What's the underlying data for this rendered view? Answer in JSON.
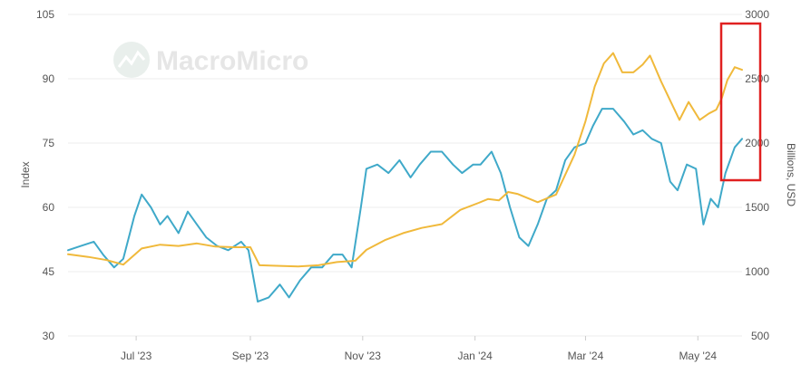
{
  "watermark": {
    "text": "MacroMicro"
  },
  "chart_data": {
    "type": "line",
    "title": "",
    "y_left": {
      "label": "Index",
      "range": [
        30,
        105
      ],
      "ticks": [
        30,
        45,
        60,
        75,
        90,
        105
      ]
    },
    "y_right": {
      "label": "Billions, USD",
      "range": [
        500,
        3000
      ],
      "ticks": [
        500,
        1000,
        1500,
        2000,
        2500,
        3000
      ]
    },
    "x_labels": [
      "Jul '23",
      "Sep '23",
      "Nov '23",
      "Jan '24",
      "Mar '24",
      "May '24"
    ],
    "x_tick_dates": [
      "2023-07-01",
      "2023-09-01",
      "2023-11-01",
      "2024-01-01",
      "2024-03-01",
      "2024-05-01"
    ],
    "x_range": [
      "2023-05-25",
      "2024-05-25"
    ],
    "grid": true,
    "highlight_box": {
      "color": "#e02020"
    },
    "series": [
      {
        "color": "#3fa9c9",
        "axis": "left",
        "points": [
          [
            "2023-05-25",
            50
          ],
          [
            "2023-06-01",
            51
          ],
          [
            "2023-06-08",
            52
          ],
          [
            "2023-06-13",
            49
          ],
          [
            "2023-06-19",
            46
          ],
          [
            "2023-06-24",
            48
          ],
          [
            "2023-06-30",
            58
          ],
          [
            "2023-07-04",
            63
          ],
          [
            "2023-07-09",
            60
          ],
          [
            "2023-07-14",
            56
          ],
          [
            "2023-07-18",
            58
          ],
          [
            "2023-07-24",
            54
          ],
          [
            "2023-07-29",
            59
          ],
          [
            "2023-08-03",
            56
          ],
          [
            "2023-08-08",
            53
          ],
          [
            "2023-08-14",
            51
          ],
          [
            "2023-08-20",
            50
          ],
          [
            "2023-08-27",
            52
          ],
          [
            "2023-08-31",
            50
          ],
          [
            "2023-09-05",
            38
          ],
          [
            "2023-09-11",
            39
          ],
          [
            "2023-09-17",
            42
          ],
          [
            "2023-09-22",
            39
          ],
          [
            "2023-09-28",
            43
          ],
          [
            "2023-10-04",
            46
          ],
          [
            "2023-10-10",
            46
          ],
          [
            "2023-10-16",
            49
          ],
          [
            "2023-10-21",
            49
          ],
          [
            "2023-10-26",
            46
          ],
          [
            "2023-10-31",
            60
          ],
          [
            "2023-11-03",
            69
          ],
          [
            "2023-11-09",
            70
          ],
          [
            "2023-11-15",
            68
          ],
          [
            "2023-11-21",
            71
          ],
          [
            "2023-11-27",
            67
          ],
          [
            "2023-12-02",
            70
          ],
          [
            "2023-12-08",
            73
          ],
          [
            "2023-12-14",
            73
          ],
          [
            "2023-12-20",
            70
          ],
          [
            "2023-12-25",
            68
          ],
          [
            "2023-12-31",
            70
          ],
          [
            "2024-01-04",
            70
          ],
          [
            "2024-01-10",
            73
          ],
          [
            "2024-01-15",
            68
          ],
          [
            "2024-01-20",
            60
          ],
          [
            "2024-01-25",
            53
          ],
          [
            "2024-01-30",
            51
          ],
          [
            "2024-02-04",
            56
          ],
          [
            "2024-02-09",
            62
          ],
          [
            "2024-02-14",
            64
          ],
          [
            "2024-02-19",
            71
          ],
          [
            "2024-02-24",
            74
          ],
          [
            "2024-03-01",
            75
          ],
          [
            "2024-03-05",
            79
          ],
          [
            "2024-03-10",
            83
          ],
          [
            "2024-03-16",
            83
          ],
          [
            "2024-03-22",
            80
          ],
          [
            "2024-03-27",
            77
          ],
          [
            "2024-04-01",
            78
          ],
          [
            "2024-04-06",
            76
          ],
          [
            "2024-04-11",
            75
          ],
          [
            "2024-04-16",
            66
          ],
          [
            "2024-04-20",
            64
          ],
          [
            "2024-04-25",
            70
          ],
          [
            "2024-04-30",
            69
          ],
          [
            "2024-05-04",
            56
          ],
          [
            "2024-05-08",
            62
          ],
          [
            "2024-05-12",
            60
          ],
          [
            "2024-05-16",
            68
          ],
          [
            "2024-05-21",
            74
          ],
          [
            "2024-05-25",
            76
          ]
        ]
      },
      {
        "color": "#f0b93b",
        "axis": "right",
        "points": [
          [
            "2023-05-25",
            1135
          ],
          [
            "2023-06-05",
            1115
          ],
          [
            "2023-06-15",
            1090
          ],
          [
            "2023-06-24",
            1055
          ],
          [
            "2023-07-04",
            1180
          ],
          [
            "2023-07-14",
            1210
          ],
          [
            "2023-07-24",
            1200
          ],
          [
            "2023-08-03",
            1220
          ],
          [
            "2023-08-13",
            1195
          ],
          [
            "2023-08-23",
            1190
          ],
          [
            "2023-09-01",
            1190
          ],
          [
            "2023-09-06",
            1050
          ],
          [
            "2023-09-17",
            1045
          ],
          [
            "2023-09-27",
            1040
          ],
          [
            "2023-10-08",
            1050
          ],
          [
            "2023-10-18",
            1075
          ],
          [
            "2023-10-28",
            1085
          ],
          [
            "2023-11-03",
            1170
          ],
          [
            "2023-11-13",
            1245
          ],
          [
            "2023-11-23",
            1300
          ],
          [
            "2023-12-03",
            1340
          ],
          [
            "2023-12-14",
            1370
          ],
          [
            "2023-12-24",
            1480
          ],
          [
            "2024-01-03",
            1535
          ],
          [
            "2024-01-08",
            1565
          ],
          [
            "2024-01-14",
            1555
          ],
          [
            "2024-01-19",
            1620
          ],
          [
            "2024-01-24",
            1605
          ],
          [
            "2024-02-04",
            1540
          ],
          [
            "2024-02-14",
            1600
          ],
          [
            "2024-02-24",
            1910
          ],
          [
            "2024-03-01",
            2170
          ],
          [
            "2024-03-06",
            2440
          ],
          [
            "2024-03-11",
            2620
          ],
          [
            "2024-03-16",
            2700
          ],
          [
            "2024-03-21",
            2550
          ],
          [
            "2024-03-27",
            2550
          ],
          [
            "2024-04-01",
            2610
          ],
          [
            "2024-04-05",
            2680
          ],
          [
            "2024-04-11",
            2480
          ],
          [
            "2024-04-16",
            2330
          ],
          [
            "2024-04-21",
            2180
          ],
          [
            "2024-04-26",
            2320
          ],
          [
            "2024-05-02",
            2180
          ],
          [
            "2024-05-07",
            2230
          ],
          [
            "2024-05-11",
            2260
          ],
          [
            "2024-05-14",
            2350
          ],
          [
            "2024-05-17",
            2490
          ],
          [
            "2024-05-21",
            2590
          ],
          [
            "2024-05-25",
            2570
          ]
        ]
      }
    ]
  }
}
